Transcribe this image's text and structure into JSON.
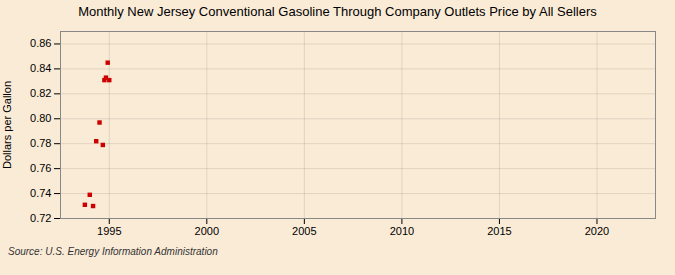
{
  "chart_data": {
    "type": "scatter",
    "title": "Monthly New Jersey Conventional Gasoline Through Company Outlets Price by All Sellers",
    "ylabel": "Dollars per Gallon",
    "source": "Source: U.S. Energy Information Administration",
    "x": [
      1993.75,
      1994.0,
      1994.17,
      1994.33,
      1994.5,
      1994.67,
      1994.75,
      1994.83,
      1994.92,
      1995.0
    ],
    "values": [
      0.731,
      0.739,
      0.73,
      0.782,
      0.797,
      0.779,
      0.831,
      0.833,
      0.845,
      0.831
    ],
    "color": "#cc0000",
    "marker": "square",
    "xlim": [
      1992.5,
      2023
    ],
    "ylim": [
      0.72,
      0.87
    ],
    "xticks": [
      1995,
      2000,
      2005,
      2010,
      2015,
      2020
    ],
    "yticks": [
      0.72,
      0.74,
      0.76,
      0.78,
      {
        "value": 0.8,
        "label": "0.80"
      },
      0.82,
      0.84,
      0.86
    ],
    "grid": true
  }
}
